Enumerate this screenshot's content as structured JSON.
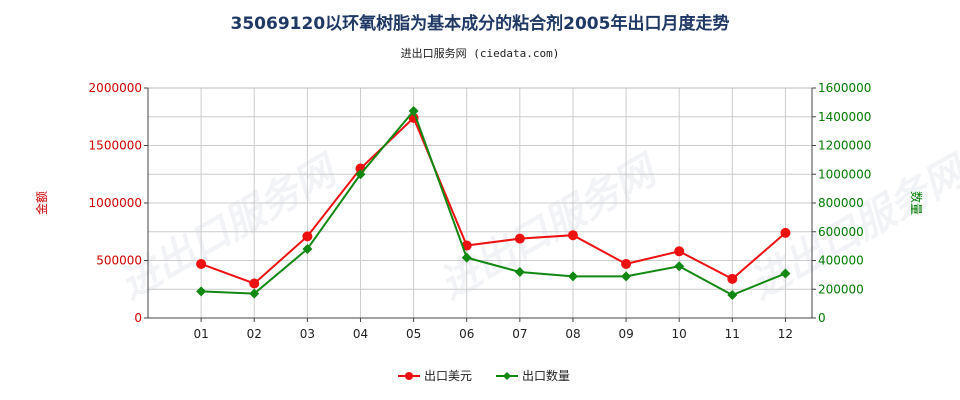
{
  "chart_data": {
    "type": "line",
    "title": "35069120以环氧树脂为基本成分的粘合剂2005年出口月度走势",
    "subtitle": "进出口服务网 (ciedata.com)",
    "categories": [
      "01",
      "02",
      "03",
      "04",
      "05",
      "06",
      "07",
      "08",
      "09",
      "10",
      "11",
      "12"
    ],
    "y_left": {
      "label": "金额",
      "min": 0,
      "max": 2000000,
      "ticks": [
        "0",
        "500000",
        "1000000",
        "1500000",
        "2000000"
      ],
      "color": "#cc0000"
    },
    "y_right": {
      "label": "数量",
      "min": 0,
      "max": 1600000,
      "ticks": [
        "0",
        "200000",
        "400000",
        "600000",
        "800000",
        "1000000",
        "1200000",
        "1400000",
        "1600000"
      ],
      "color": "#007a00"
    },
    "grid": true,
    "legend_position": "bottom-center",
    "series": [
      {
        "name": "出口美元",
        "axis": "left",
        "color": "#ee1111",
        "values": [
          470000,
          300000,
          710000,
          1300000,
          1740000,
          630000,
          690000,
          720000,
          470000,
          580000,
          340000,
          740000
        ]
      },
      {
        "name": "出口数量",
        "axis": "right",
        "color": "#118811",
        "values": [
          185000,
          170000,
          480000,
          1000000,
          1440000,
          420000,
          320000,
          290000,
          290000,
          360000,
          160000,
          310000
        ]
      }
    ]
  },
  "watermark": "进出口服务网"
}
